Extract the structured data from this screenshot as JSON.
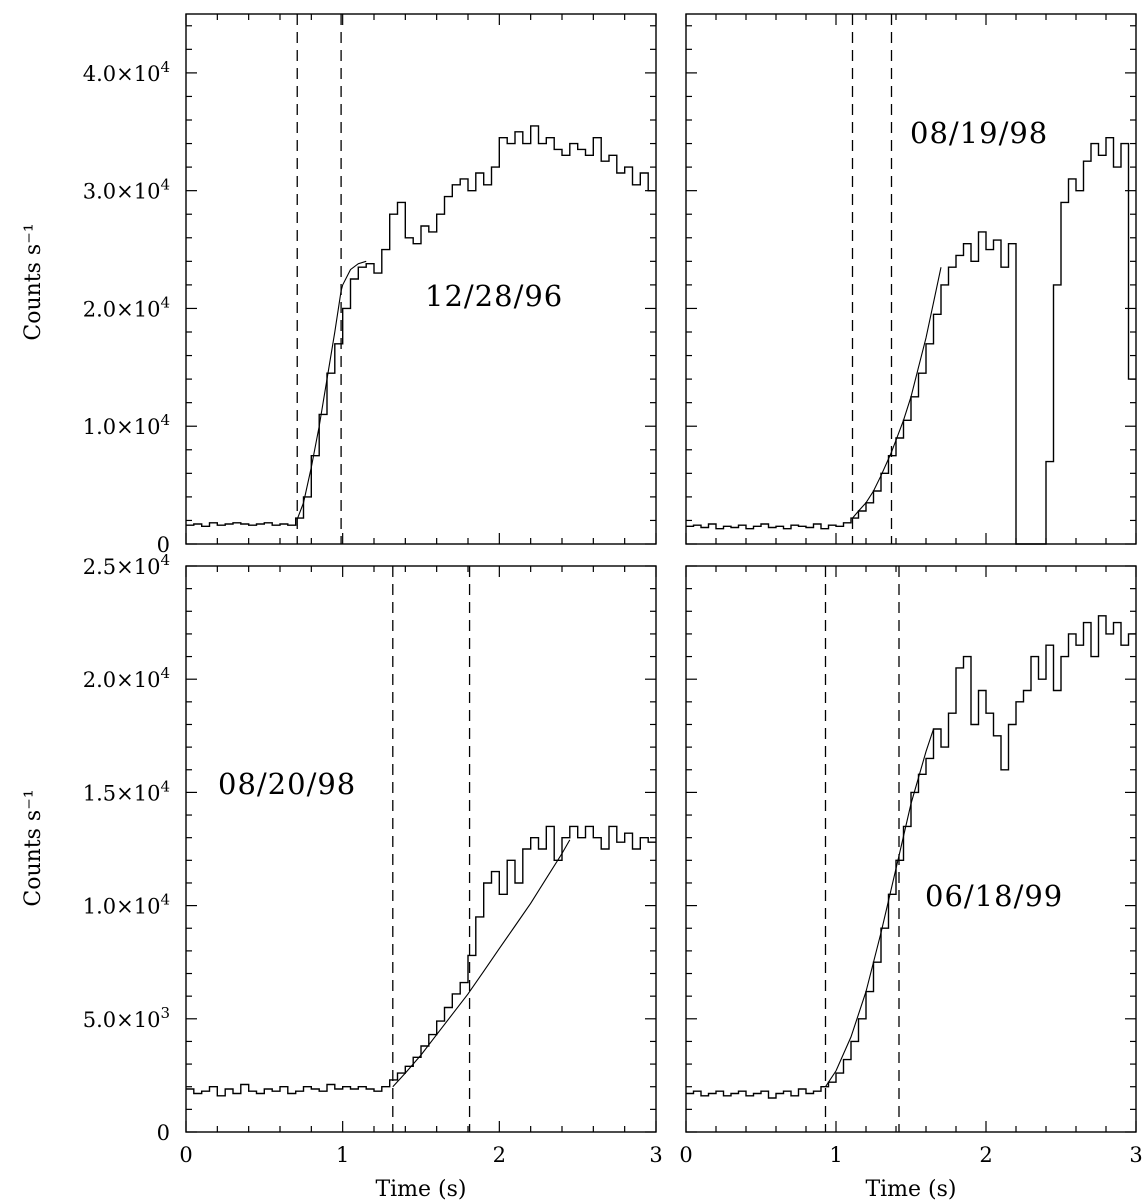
{
  "chart_data": [
    {
      "type": "line",
      "panel": "top-left",
      "label": "12/28/96",
      "xlim": [
        0,
        3
      ],
      "ylim": [
        0,
        45000
      ],
      "xlabel": "",
      "ylabel": "Counts s⁻¹",
      "yticks": [
        {
          "value": 0,
          "mantissa": "0",
          "exponent": ""
        },
        {
          "value": 10000,
          "mantissa": "1.0×10",
          "exponent": "4"
        },
        {
          "value": 20000,
          "mantissa": "2.0×10",
          "exponent": "4"
        },
        {
          "value": 30000,
          "mantissa": "3.0×10",
          "exponent": "4"
        },
        {
          "value": 40000,
          "mantissa": "4.0×10",
          "exponent": "4"
        }
      ],
      "xticks": [],
      "markers": [
        0.71,
        0.99
      ],
      "series": [
        {
          "x": [
            0,
            0.05,
            0.1,
            0.15,
            0.2,
            0.25,
            0.3,
            0.35,
            0.4,
            0.45,
            0.5,
            0.55,
            0.6,
            0.65,
            0.7,
            0.75,
            0.8,
            0.85,
            0.9,
            0.95,
            1.0,
            1.05,
            1.1,
            1.15,
            1.2,
            1.25,
            1.3,
            1.35,
            1.4,
            1.45,
            1.5,
            1.55,
            1.6,
            1.65,
            1.7,
            1.75,
            1.8,
            1.85,
            1.9,
            1.95,
            2.0,
            2.05,
            2.1,
            2.15,
            2.2,
            2.25,
            2.3,
            2.35,
            2.4,
            2.45,
            2.5,
            2.55,
            2.6,
            2.65,
            2.7,
            2.75,
            2.8,
            2.85,
            2.9,
            2.95
          ],
          "values": [
            1600,
            1700,
            1500,
            1800,
            1600,
            1700,
            1800,
            1700,
            1600,
            1700,
            1800,
            1600,
            1700,
            1600,
            2200,
            4000,
            7500,
            11000,
            14500,
            17000,
            20000,
            22500,
            23500,
            23800,
            23000,
            25000,
            28000,
            29000,
            26000,
            25500,
            27000,
            26500,
            28000,
            29500,
            30500,
            31000,
            30000,
            31500,
            30500,
            32000,
            34500,
            34000,
            35000,
            34000,
            35500,
            34000,
            34500,
            33500,
            33000,
            34000,
            33500,
            33000,
            34500,
            32500,
            33000,
            31500,
            32000,
            30500,
            31500,
            30000
          ]
        },
        {
          "x": [
            0.71,
            0.75,
            0.8,
            0.85,
            0.9,
            0.95,
            0.99,
            1.0,
            1.05,
            1.1,
            1.15
          ],
          "values": [
            2100,
            3500,
            6500,
            10000,
            14000,
            18000,
            21500,
            22000,
            23300,
            23800,
            24000
          ]
        }
      ]
    },
    {
      "type": "line",
      "panel": "top-right",
      "label": "08/19/98",
      "xlim": [
        0,
        3
      ],
      "ylim": [
        0,
        45000
      ],
      "xlabel": "",
      "ylabel": "",
      "yticks": [],
      "xticks": [],
      "markers": [
        1.11,
        1.37
      ],
      "series": [
        {
          "x": [
            0,
            0.05,
            0.1,
            0.15,
            0.2,
            0.25,
            0.3,
            0.35,
            0.4,
            0.45,
            0.5,
            0.55,
            0.6,
            0.65,
            0.7,
            0.75,
            0.8,
            0.85,
            0.9,
            0.95,
            1.0,
            1.05,
            1.1,
            1.15,
            1.2,
            1.25,
            1.3,
            1.35,
            1.4,
            1.45,
            1.5,
            1.55,
            1.6,
            1.65,
            1.7,
            1.75,
            1.8,
            1.85,
            1.9,
            1.95,
            2.0,
            2.05,
            2.1,
            2.15,
            2.2,
            2.25,
            2.3,
            2.35,
            2.4,
            2.45,
            2.5,
            2.55,
            2.6,
            2.65,
            2.7,
            2.75,
            2.8,
            2.85,
            2.9,
            2.95
          ],
          "values": [
            1500,
            1600,
            1400,
            1700,
            1300,
            1500,
            1400,
            1600,
            1300,
            1500,
            1700,
            1400,
            1500,
            1300,
            1600,
            1500,
            1400,
            1700,
            1300,
            1600,
            1500,
            1800,
            2200,
            2800,
            3500,
            4500,
            6000,
            7500,
            9000,
            10500,
            12500,
            14500,
            17000,
            19500,
            22000,
            23500,
            24500,
            25500,
            24000,
            26500,
            25000,
            25800,
            23500,
            25500,
            0,
            0,
            0,
            0,
            7000,
            22000,
            29000,
            31000,
            30000,
            32500,
            34000,
            33000,
            34500,
            32000,
            34000,
            14000
          ]
        },
        {
          "x": [
            1.11,
            1.15,
            1.2,
            1.25,
            1.3,
            1.37,
            1.45,
            1.5,
            1.55,
            1.6,
            1.65,
            1.7
          ],
          "values": [
            2200,
            2800,
            3500,
            4500,
            5800,
            7800,
            10500,
            12500,
            15000,
            17500,
            20500,
            23500
          ]
        }
      ]
    },
    {
      "type": "line",
      "panel": "bottom-left",
      "label": "08/20/98",
      "xlim": [
        0,
        3
      ],
      "ylim": [
        0,
        25000
      ],
      "xlabel": "Time (s)",
      "ylabel": "Counts s⁻¹",
      "yticks": [
        {
          "value": 0,
          "mantissa": "0",
          "exponent": ""
        },
        {
          "value": 5000,
          "mantissa": "5.0×10",
          "exponent": "3"
        },
        {
          "value": 10000,
          "mantissa": "1.0×10",
          "exponent": "4"
        },
        {
          "value": 15000,
          "mantissa": "1.5×10",
          "exponent": "4"
        },
        {
          "value": 20000,
          "mantissa": "2.0×10",
          "exponent": "4"
        },
        {
          "value": 25000,
          "mantissa": "2.5×10",
          "exponent": "4"
        }
      ],
      "xticks": [
        {
          "value": 0,
          "label": "0"
        },
        {
          "value": 1,
          "label": "1"
        },
        {
          "value": 2,
          "label": "2"
        },
        {
          "value": 3,
          "label": "3"
        }
      ],
      "markers": [
        1.32,
        1.81
      ],
      "series": [
        {
          "x": [
            0,
            0.05,
            0.1,
            0.15,
            0.2,
            0.25,
            0.3,
            0.35,
            0.4,
            0.45,
            0.5,
            0.55,
            0.6,
            0.65,
            0.7,
            0.75,
            0.8,
            0.85,
            0.9,
            0.95,
            1.0,
            1.05,
            1.1,
            1.15,
            1.2,
            1.25,
            1.3,
            1.35,
            1.4,
            1.45,
            1.5,
            1.55,
            1.6,
            1.65,
            1.7,
            1.75,
            1.8,
            1.85,
            1.9,
            1.95,
            2.0,
            2.05,
            2.1,
            2.15,
            2.2,
            2.25,
            2.3,
            2.35,
            2.4,
            2.45,
            2.5,
            2.55,
            2.6,
            2.65,
            2.7,
            2.75,
            2.8,
            2.85,
            2.9,
            2.95
          ],
          "values": [
            1900,
            1700,
            1800,
            2000,
            1600,
            1900,
            1700,
            2100,
            1800,
            1700,
            1900,
            1800,
            2000,
            1700,
            1800,
            2000,
            1900,
            1800,
            2100,
            1900,
            2000,
            1900,
            2000,
            1900,
            1800,
            2000,
            2300,
            2600,
            2900,
            3300,
            3800,
            4300,
            4900,
            5500,
            6100,
            6600,
            7800,
            9500,
            11000,
            11500,
            10500,
            12000,
            11000,
            12500,
            13000,
            12500,
            13500,
            12000,
            13000,
            13500,
            13000,
            13500,
            13000,
            12500,
            13500,
            12800,
            13200,
            12500,
            13000,
            12800
          ]
        },
        {
          "x": [
            1.32,
            1.4,
            1.5,
            1.6,
            1.7,
            1.8,
            1.9,
            2.0,
            2.1,
            2.2,
            2.3,
            2.4,
            2.45
          ],
          "values": [
            2000,
            2600,
            3400,
            4300,
            5200,
            6100,
            7100,
            8100,
            9100,
            10100,
            11200,
            12300,
            12900
          ]
        }
      ]
    },
    {
      "type": "line",
      "panel": "bottom-right",
      "label": "06/18/99",
      "xlim": [
        0,
        3
      ],
      "ylim": [
        0,
        25000
      ],
      "xlabel": "Time (s)",
      "ylabel": "",
      "yticks": [],
      "xticks": [
        {
          "value": 0,
          "label": "0"
        },
        {
          "value": 1,
          "label": "1"
        },
        {
          "value": 2,
          "label": "2"
        },
        {
          "value": 3,
          "label": "3"
        }
      ],
      "markers": [
        0.93,
        1.42
      ],
      "series": [
        {
          "x": [
            0,
            0.05,
            0.1,
            0.15,
            0.2,
            0.25,
            0.3,
            0.35,
            0.4,
            0.45,
            0.5,
            0.55,
            0.6,
            0.65,
            0.7,
            0.75,
            0.8,
            0.85,
            0.9,
            0.95,
            1.0,
            1.05,
            1.1,
            1.15,
            1.2,
            1.25,
            1.3,
            1.35,
            1.4,
            1.45,
            1.5,
            1.55,
            1.6,
            1.65,
            1.7,
            1.75,
            1.8,
            1.85,
            1.9,
            1.95,
            2.0,
            2.05,
            2.1,
            2.15,
            2.2,
            2.25,
            2.3,
            2.35,
            2.4,
            2.45,
            2.5,
            2.55,
            2.6,
            2.65,
            2.7,
            2.75,
            2.8,
            2.85,
            2.9,
            2.95
          ],
          "values": [
            1700,
            1800,
            1600,
            1700,
            1800,
            1600,
            1700,
            1800,
            1600,
            1700,
            1800,
            1500,
            1700,
            1800,
            1600,
            1900,
            1700,
            1800,
            2000,
            2200,
            2600,
            3200,
            4000,
            5000,
            6200,
            7500,
            9000,
            10500,
            12000,
            13500,
            15000,
            15800,
            16500,
            17800,
            17000,
            18500,
            20500,
            21000,
            18000,
            19500,
            18500,
            17500,
            16000,
            18000,
            19000,
            19500,
            21000,
            20000,
            21500,
            19500,
            21000,
            22000,
            21500,
            22500,
            21000,
            22800,
            22000,
            22500,
            21500,
            22000
          ]
        },
        {
          "x": [
            0.93,
            1.0,
            1.1,
            1.2,
            1.3,
            1.42,
            1.5,
            1.6,
            1.65
          ],
          "values": [
            2000,
            2700,
            4200,
            6200,
            8800,
            12200,
            14500,
            16800,
            17800
          ]
        }
      ]
    }
  ]
}
